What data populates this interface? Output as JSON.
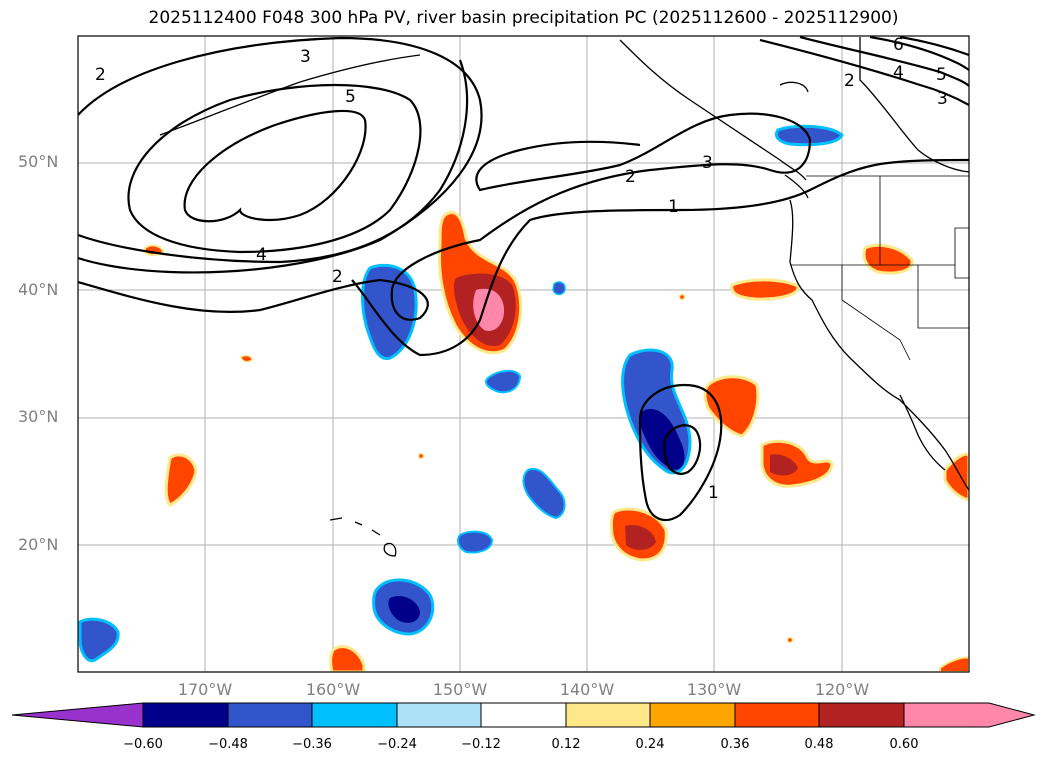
{
  "title": "2025112400 F048 300 hPa PV, river basin precipitation PC (2025112600 - 2025112900)",
  "map": {
    "lat_labels": [
      "50°N",
      "40°N",
      "30°N",
      "20°N"
    ],
    "lon_labels": [
      "170°W",
      "160°W",
      "150°W",
      "140°W",
      "130°W",
      "120°W"
    ],
    "pv_contour_labels": [
      "2",
      "3",
      "5",
      "4",
      "2",
      "2",
      "1",
      "3",
      "6",
      "4",
      "5",
      "3",
      "2",
      "1"
    ],
    "pv_contour_color": "#000000",
    "gridlines": true
  },
  "colorbar": {
    "ticks": [
      "−0.60",
      "−0.48",
      "−0.36",
      "−0.24",
      "−0.12",
      "0.12",
      "0.24",
      "0.36",
      "0.48",
      "0.60"
    ],
    "colors": [
      "#9932cc",
      "#00008b",
      "#3355cc",
      "#00bfff",
      "#aee0f8",
      "#ffffff",
      "#ffe88a",
      "#ffa500",
      "#ff4500",
      "#b22222",
      "#ff88aa"
    ],
    "extend": "both"
  }
}
